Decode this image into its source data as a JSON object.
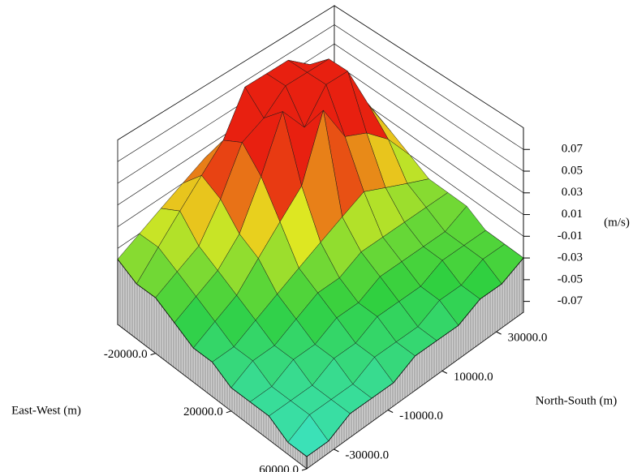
{
  "chart_data": {
    "type": "surface3d",
    "xlabel": "East-West (m)",
    "ylabel": "North-South (m)",
    "zlabel": "(m/s)",
    "x": [
      -40000,
      -30000,
      -20000,
      -10000,
      0,
      10000,
      20000,
      30000,
      40000,
      50000,
      60000
    ],
    "y": [
      -40000,
      -32000,
      -24000,
      -16000,
      -8000,
      0,
      8000,
      16000,
      24000,
      32000,
      40000
    ],
    "z": [
      [
        -0.02,
        -0.03,
        -0.03,
        -0.04,
        -0.05,
        -0.05,
        -0.06,
        -0.06,
        -0.06,
        -0.07,
        -0.07
      ],
      [
        -0.01,
        -0.01,
        -0.02,
        -0.03,
        -0.04,
        -0.05,
        -0.05,
        -0.06,
        -0.06,
        -0.06,
        -0.07
      ],
      [
        0.0,
        0.01,
        -0.01,
        -0.02,
        -0.03,
        -0.04,
        -0.05,
        -0.05,
        -0.06,
        -0.06,
        -0.06
      ],
      [
        0.01,
        0.03,
        0.02,
        0.0,
        -0.01,
        -0.03,
        -0.04,
        -0.05,
        -0.05,
        -0.06,
        -0.06
      ],
      [
        0.02,
        0.05,
        0.06,
        0.04,
        0.01,
        -0.02,
        -0.03,
        -0.04,
        -0.05,
        -0.05,
        -0.06
      ],
      [
        0.01,
        0.088,
        0.07,
        0.088,
        0.03,
        -0.01,
        -0.03,
        -0.04,
        -0.04,
        -0.05,
        -0.05
      ],
      [
        0.02,
        0.088,
        0.088,
        0.06,
        0.088,
        0.0,
        -0.02,
        -0.03,
        -0.04,
        -0.05,
        -0.05
      ],
      [
        0.03,
        0.088,
        0.088,
        0.088,
        0.05,
        0.01,
        -0.02,
        -0.03,
        -0.04,
        -0.04,
        -0.05
      ],
      [
        0.02,
        0.07,
        0.088,
        0.088,
        0.04,
        0.0,
        -0.02,
        -0.03,
        -0.03,
        -0.04,
        -0.04
      ],
      [
        0.0,
        0.03,
        0.05,
        0.04,
        0.02,
        -0.01,
        -0.02,
        -0.03,
        -0.03,
        -0.03,
        -0.04
      ],
      [
        -0.01,
        0.0,
        0.01,
        0.0,
        -0.01,
        -0.02,
        -0.02,
        -0.02,
        -0.03,
        -0.03,
        -0.03
      ]
    ],
    "xlim": [
      -40000,
      60000
    ],
    "ylim": [
      -40000,
      40000
    ],
    "zlim": [
      -0.08,
      0.09
    ],
    "xticks": [
      {
        "value": -20000,
        "label": "-20000.0"
      },
      {
        "value": 20000,
        "label": "20000.0"
      },
      {
        "value": 60000,
        "label": "60000.0"
      }
    ],
    "yticks": [
      {
        "value": -30000,
        "label": "-30000.0"
      },
      {
        "value": -10000,
        "label": "-10000.0"
      },
      {
        "value": 10000,
        "label": "10000.0"
      },
      {
        "value": 30000,
        "label": "30000.0"
      }
    ],
    "zticks": [
      -0.07,
      -0.05,
      -0.03,
      -0.01,
      0.01,
      0.03,
      0.05,
      0.07
    ],
    "colormap": [
      "#40e8e8",
      "#30d040",
      "#e8e820",
      "#e82010",
      "#e82010"
    ],
    "grid": true
  }
}
